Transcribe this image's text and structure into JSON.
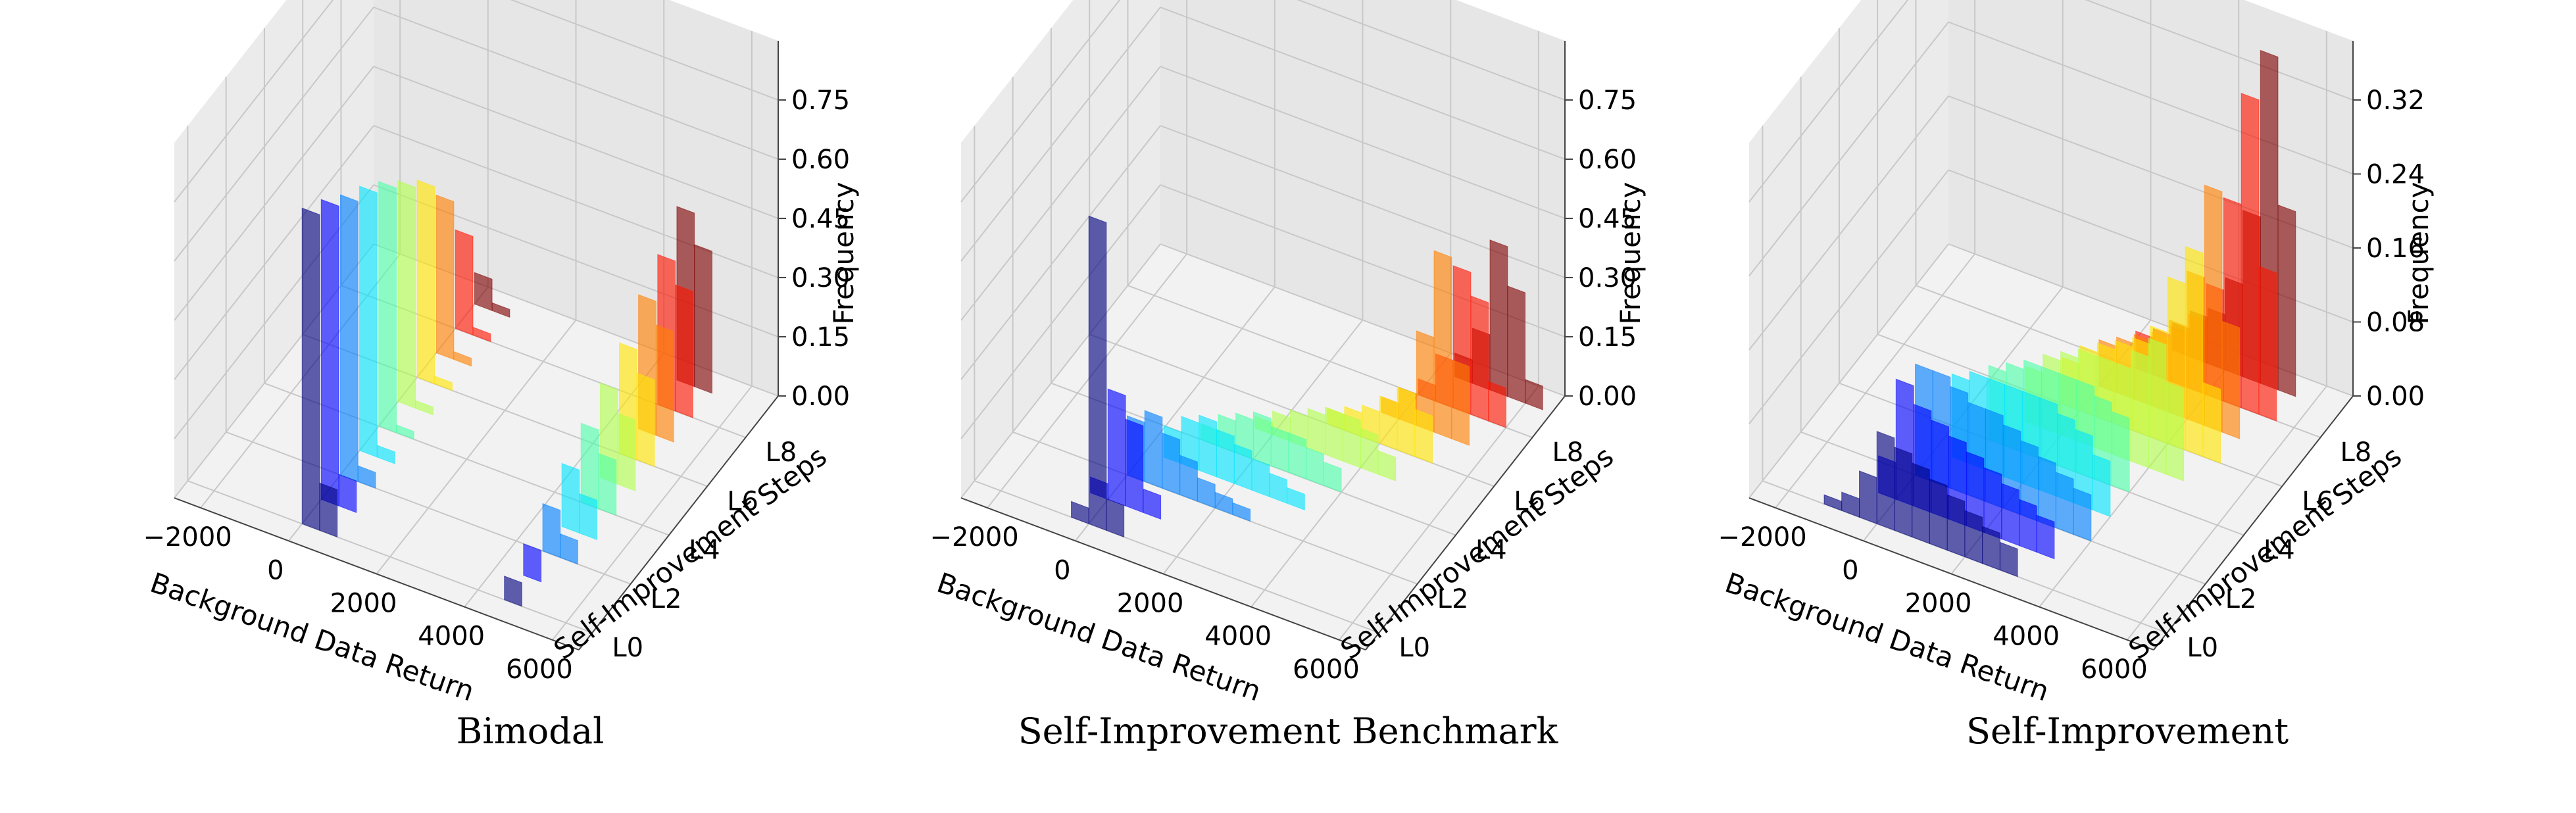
{
  "chart_data": [
    {
      "type": "bar3d",
      "title": "Bimodal",
      "xlabel": "Background Data Return",
      "ylabel": "Self-Improvement Steps",
      "zlabel": "Frequency",
      "x_ticks": [
        "−2000",
        "0",
        "2000",
        "4000",
        "6000"
      ],
      "x_tick_values": [
        -2000,
        0,
        2000,
        4000,
        6000
      ],
      "y_ticks": [
        "L0",
        "L2",
        "L4",
        "L6",
        "L8"
      ],
      "y_tick_values": [
        0,
        2,
        4,
        6,
        8
      ],
      "z_ticks": [
        "0.00",
        "0.15",
        "0.30",
        "0.45",
        "0.60",
        "0.75"
      ],
      "z_tick_values": [
        0,
        0.15,
        0.3,
        0.45,
        0.6,
        0.75
      ],
      "xlim": [
        -2600,
        6600
      ],
      "zlim": [
        0,
        0.9
      ],
      "bin_width": 400,
      "colors": [
        "#00007f",
        "#0000ff",
        "#007fff",
        "#00e5ff",
        "#4cffaa",
        "#b2ff4c",
        "#ffe500",
        "#ff7f00",
        "#ff1400",
        "#7f0000"
      ],
      "series": [
        {
          "name": "L0",
          "bars": [
            [
              0,
              0.8
            ],
            [
              400,
              0.12
            ],
            [
              4600,
              0.06
            ]
          ]
        },
        {
          "name": "L1",
          "bars": [
            [
              0,
              0.76
            ],
            [
              400,
              0.08
            ],
            [
              4600,
              0.08
            ]
          ]
        },
        {
          "name": "L2",
          "bars": [
            [
              0,
              0.71
            ],
            [
              400,
              0.04
            ],
            [
              4600,
              0.12
            ],
            [
              5000,
              0.06
            ]
          ]
        },
        {
          "name": "L3",
          "bars": [
            [
              0,
              0.67
            ],
            [
              400,
              0.03
            ],
            [
              4600,
              0.16
            ],
            [
              5000,
              0.1
            ]
          ]
        },
        {
          "name": "L4",
          "bars": [
            [
              0,
              0.62
            ],
            [
              400,
              0.02
            ],
            [
              4600,
              0.2
            ],
            [
              5000,
              0.14
            ]
          ]
        },
        {
          "name": "L5",
          "bars": [
            [
              0,
              0.56
            ],
            [
              400,
              0.02
            ],
            [
              4600,
              0.24
            ],
            [
              5000,
              0.18
            ]
          ]
        },
        {
          "name": "L6",
          "bars": [
            [
              0,
              0.5
            ],
            [
              400,
              0.02
            ],
            [
              4600,
              0.28
            ],
            [
              5000,
              0.22
            ]
          ]
        },
        {
          "name": "L7",
          "bars": [
            [
              0,
              0.4
            ],
            [
              400,
              0.02
            ],
            [
              4600,
              0.34
            ],
            [
              5000,
              0.28
            ]
          ]
        },
        {
          "name": "L8",
          "bars": [
            [
              0,
              0.25
            ],
            [
              400,
              0.02
            ],
            [
              4600,
              0.38
            ],
            [
              5000,
              0.32
            ]
          ]
        },
        {
          "name": "L9",
          "bars": [
            [
              0,
              0.08
            ],
            [
              400,
              0.02
            ],
            [
              4600,
              0.44
            ],
            [
              5000,
              0.36
            ]
          ]
        }
      ]
    },
    {
      "type": "bar3d",
      "title": "Self-Improvement Benchmark",
      "xlabel": "Background Data Return",
      "ylabel": "Self-Improvement Steps",
      "zlabel": "Frequency",
      "x_ticks": [
        "−2000",
        "0",
        "2000",
        "4000",
        "6000"
      ],
      "x_tick_values": [
        -2000,
        0,
        2000,
        4000,
        6000
      ],
      "y_ticks": [
        "L0",
        "L2",
        "L4",
        "L6",
        "L8"
      ],
      "y_tick_values": [
        0,
        2,
        4,
        6,
        8
      ],
      "z_ticks": [
        "0.00",
        "0.15",
        "0.30",
        "0.45",
        "0.60",
        "0.75"
      ],
      "z_tick_values": [
        0,
        0.15,
        0.3,
        0.45,
        0.6,
        0.75
      ],
      "xlim": [
        -2600,
        6600
      ],
      "zlim": [
        0,
        0.9
      ],
      "bin_width": 400,
      "colors": [
        "#00007f",
        "#0000ff",
        "#007fff",
        "#00e5ff",
        "#4cffaa",
        "#b2ff4c",
        "#ffe500",
        "#ff7f00",
        "#ff1400",
        "#7f0000"
      ],
      "series": [
        {
          "name": "L0",
          "bars": [
            [
              0,
              0.78
            ],
            [
              400,
              0.08
            ],
            [
              -400,
              0.04
            ]
          ]
        },
        {
          "name": "L1",
          "bars": [
            [
              0,
              0.28
            ],
            [
              400,
              0.22
            ],
            [
              800,
              0.06
            ],
            [
              -400,
              0.04
            ]
          ]
        },
        {
          "name": "L2",
          "bars": [
            [
              0,
              0.15
            ],
            [
              400,
              0.18
            ],
            [
              800,
              0.14
            ],
            [
              1200,
              0.1
            ],
            [
              1600,
              0.06
            ],
            [
              2000,
              0.04
            ],
            [
              2400,
              0.03
            ]
          ]
        },
        {
          "name": "L3",
          "bars": [
            [
              400,
              0.08
            ],
            [
              800,
              0.12
            ],
            [
              1200,
              0.14
            ],
            [
              1600,
              0.12
            ],
            [
              2000,
              0.1
            ],
            [
              2400,
              0.08
            ],
            [
              2800,
              0.06
            ],
            [
              3200,
              0.04
            ]
          ]
        },
        {
          "name": "L4",
          "bars": [
            [
              800,
              0.04
            ],
            [
              1200,
              0.08
            ],
            [
              1600,
              0.1
            ],
            [
              2000,
              0.12
            ],
            [
              2400,
              0.1
            ],
            [
              2800,
              0.1
            ],
            [
              3200,
              0.08
            ],
            [
              3600,
              0.06
            ]
          ]
        },
        {
          "name": "L5",
          "bars": [
            [
              1600,
              0.03
            ],
            [
              2000,
              0.06
            ],
            [
              2400,
              0.08
            ],
            [
              2800,
              0.1
            ],
            [
              3200,
              0.12
            ],
            [
              3600,
              0.12
            ],
            [
              4000,
              0.1
            ],
            [
              4400,
              0.06
            ]
          ]
        },
        {
          "name": "L6",
          "bars": [
            [
              2800,
              0.04
            ],
            [
              3200,
              0.06
            ],
            [
              3600,
              0.08
            ],
            [
              4000,
              0.12
            ],
            [
              4400,
              0.16
            ],
            [
              4800,
              0.12
            ]
          ]
        },
        {
          "name": "L7",
          "bars": [
            [
              3600,
              0.04
            ],
            [
              4000,
              0.08
            ],
            [
              4400,
              0.24
            ],
            [
              4800,
              0.46
            ],
            [
              5200,
              0.2
            ]
          ]
        },
        {
          "name": "L8",
          "bars": [
            [
              4000,
              0.04
            ],
            [
              4400,
              0.12
            ],
            [
              4800,
              0.36
            ],
            [
              5200,
              0.3
            ],
            [
              5600,
              0.1
            ]
          ]
        },
        {
          "name": "L9",
          "bars": [
            [
              4400,
              0.06
            ],
            [
              4800,
              0.14
            ],
            [
              5200,
              0.38
            ],
            [
              5600,
              0.28
            ],
            [
              6000,
              0.06
            ]
          ]
        }
      ]
    },
    {
      "type": "bar3d",
      "title": "Self-Improvement",
      "xlabel": "Background Data Return",
      "ylabel": "Self-Improvement Steps",
      "zlabel": "Frequency",
      "x_ticks": [
        "−2000",
        "0",
        "2000",
        "4000",
        "6000"
      ],
      "x_tick_values": [
        -2000,
        0,
        2000,
        4000,
        6000
      ],
      "y_ticks": [
        "L0",
        "L2",
        "L4",
        "L6",
        "L8"
      ],
      "y_tick_values": [
        0,
        2,
        4,
        6,
        8
      ],
      "z_ticks": [
        "0.00",
        "0.08",
        "0.16",
        "0.24",
        "0.32"
      ],
      "z_tick_values": [
        0,
        0.08,
        0.16,
        0.24,
        0.32
      ],
      "xlim": [
        -2600,
        6600
      ],
      "zlim": [
        0,
        0.384
      ],
      "bin_width": 400,
      "colors": [
        "#00007f",
        "#0000ff",
        "#007fff",
        "#00e5ff",
        "#4cffaa",
        "#b2ff4c",
        "#ffe500",
        "#ff7f00",
        "#ff1400",
        "#7f0000"
      ],
      "series": [
        {
          "name": "L0",
          "bars": [
            [
              -1200,
              0.01
            ],
            [
              -800,
              0.02
            ],
            [
              -400,
              0.05
            ],
            [
              0,
              0.1
            ],
            [
              400,
              0.09
            ],
            [
              800,
              0.08
            ],
            [
              1200,
              0.07
            ],
            [
              1600,
              0.06
            ],
            [
              2000,
              0.05
            ],
            [
              2400,
              0.04
            ],
            [
              2800,
              0.03
            ]
          ]
        },
        {
          "name": "L1",
          "bars": [
            [
              -400,
              0.04
            ],
            [
              0,
              0.13
            ],
            [
              400,
              0.11
            ],
            [
              800,
              0.1
            ],
            [
              1200,
              0.09
            ],
            [
              1600,
              0.08
            ],
            [
              2000,
              0.07
            ],
            [
              2400,
              0.06
            ],
            [
              2800,
              0.05
            ],
            [
              3200,
              0.04
            ]
          ]
        },
        {
          "name": "L2",
          "bars": [
            [
              0,
              0.12
            ],
            [
              400,
              0.12
            ],
            [
              800,
              0.11
            ],
            [
              1200,
              0.1
            ],
            [
              1600,
              0.1
            ],
            [
              2000,
              0.09
            ],
            [
              2400,
              0.08
            ],
            [
              2800,
              0.07
            ],
            [
              3200,
              0.06
            ],
            [
              3600,
              0.05
            ]
          ]
        },
        {
          "name": "L3",
          "bars": [
            [
              400,
              0.09
            ],
            [
              800,
              0.1
            ],
            [
              1200,
              0.1
            ],
            [
              1600,
              0.1
            ],
            [
              2000,
              0.1
            ],
            [
              2400,
              0.1
            ],
            [
              2800,
              0.09
            ],
            [
              3200,
              0.08
            ],
            [
              3600,
              0.06
            ]
          ]
        },
        {
          "name": "L4",
          "bars": [
            [
              800,
              0.08
            ],
            [
              1200,
              0.09
            ],
            [
              1600,
              0.1
            ],
            [
              2000,
              0.1
            ],
            [
              2400,
              0.1
            ],
            [
              2800,
              0.1
            ],
            [
              3200,
              0.09
            ],
            [
              3600,
              0.08
            ]
          ]
        },
        {
          "name": "L5",
          "bars": [
            [
              1200,
              0.06
            ],
            [
              1600,
              0.08
            ],
            [
              2000,
              0.09
            ],
            [
              2400,
              0.1
            ],
            [
              2800,
              0.1
            ],
            [
              3200,
              0.1
            ],
            [
              3600,
              0.12
            ],
            [
              4000,
              0.14
            ],
            [
              4400,
              0.1
            ]
          ]
        },
        {
          "name": "L6",
          "bars": [
            [
              1600,
              0.05
            ],
            [
              2000,
              0.07
            ],
            [
              2400,
              0.08
            ],
            [
              2800,
              0.09
            ],
            [
              3200,
              0.1
            ],
            [
              3600,
              0.12
            ],
            [
              4000,
              0.18
            ],
            [
              4400,
              0.22
            ],
            [
              4800,
              0.08
            ]
          ]
        },
        {
          "name": "L7",
          "bars": [
            [
              2000,
              0.05
            ],
            [
              2400,
              0.06
            ],
            [
              2800,
              0.07
            ],
            [
              3200,
              0.08
            ],
            [
              3600,
              0.1
            ],
            [
              4000,
              0.16
            ],
            [
              4400,
              0.26
            ],
            [
              4800,
              0.12
            ]
          ]
        },
        {
          "name": "L8",
          "bars": [
            [
              2400,
              0.04
            ],
            [
              2800,
              0.05
            ],
            [
              3200,
              0.06
            ],
            [
              3600,
              0.08
            ],
            [
              4000,
              0.12
            ],
            [
              4400,
              0.22
            ],
            [
              4800,
              0.34
            ],
            [
              5200,
              0.16
            ]
          ]
        },
        {
          "name": "L9",
          "bars": [
            [
              2800,
              0.03
            ],
            [
              3200,
              0.05
            ],
            [
              3600,
              0.06
            ],
            [
              4000,
              0.1
            ],
            [
              4400,
              0.18
            ],
            [
              4800,
              0.36
            ],
            [
              5200,
              0.2
            ]
          ]
        }
      ]
    }
  ]
}
